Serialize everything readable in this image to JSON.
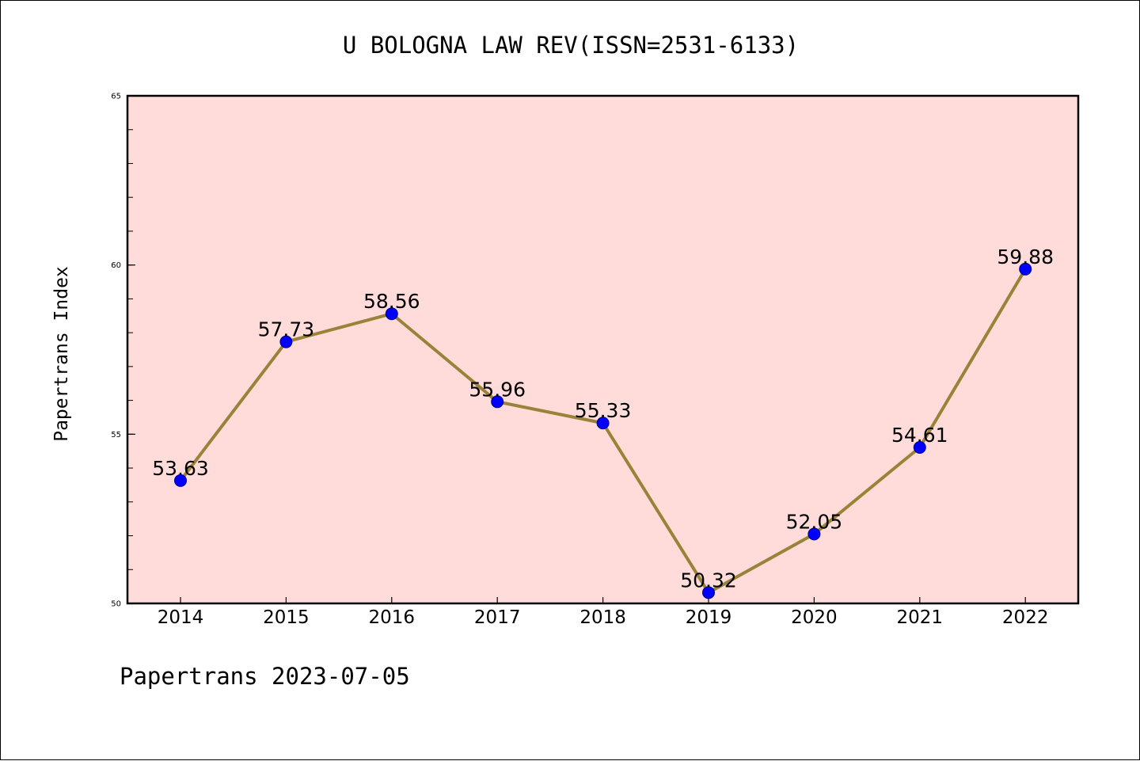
{
  "chart_data": {
    "type": "line",
    "title": "U BOLOGNA LAW REV(ISSN=2531-6133)",
    "ylabel": "Papertrans Index",
    "xlabel": "",
    "footer": "Papertrans 2023-07-05",
    "categories": [
      "2014",
      "2015",
      "2016",
      "2017",
      "2018",
      "2019",
      "2020",
      "2021",
      "2022"
    ],
    "series": [
      {
        "values": [
          53.63,
          57.73,
          58.56,
          55.96,
          55.33,
          50.32,
          52.05,
          54.61,
          59.88
        ],
        "labels": [
          "53.63",
          "57.73",
          "58.56",
          "55.96",
          "55.33",
          "50.32",
          "52.05",
          "54.61",
          "59.88"
        ]
      }
    ],
    "ylim": [
      50,
      65
    ],
    "yticks": [
      "50",
      "55",
      "60",
      "65"
    ],
    "grid": false,
    "legend": "none",
    "colors": {
      "plot_background": "#FFDCDA",
      "line": "#9A8238",
      "marker_fill": "#0000FF",
      "marker_stroke": "#00008B",
      "axes": "#000000"
    }
  }
}
